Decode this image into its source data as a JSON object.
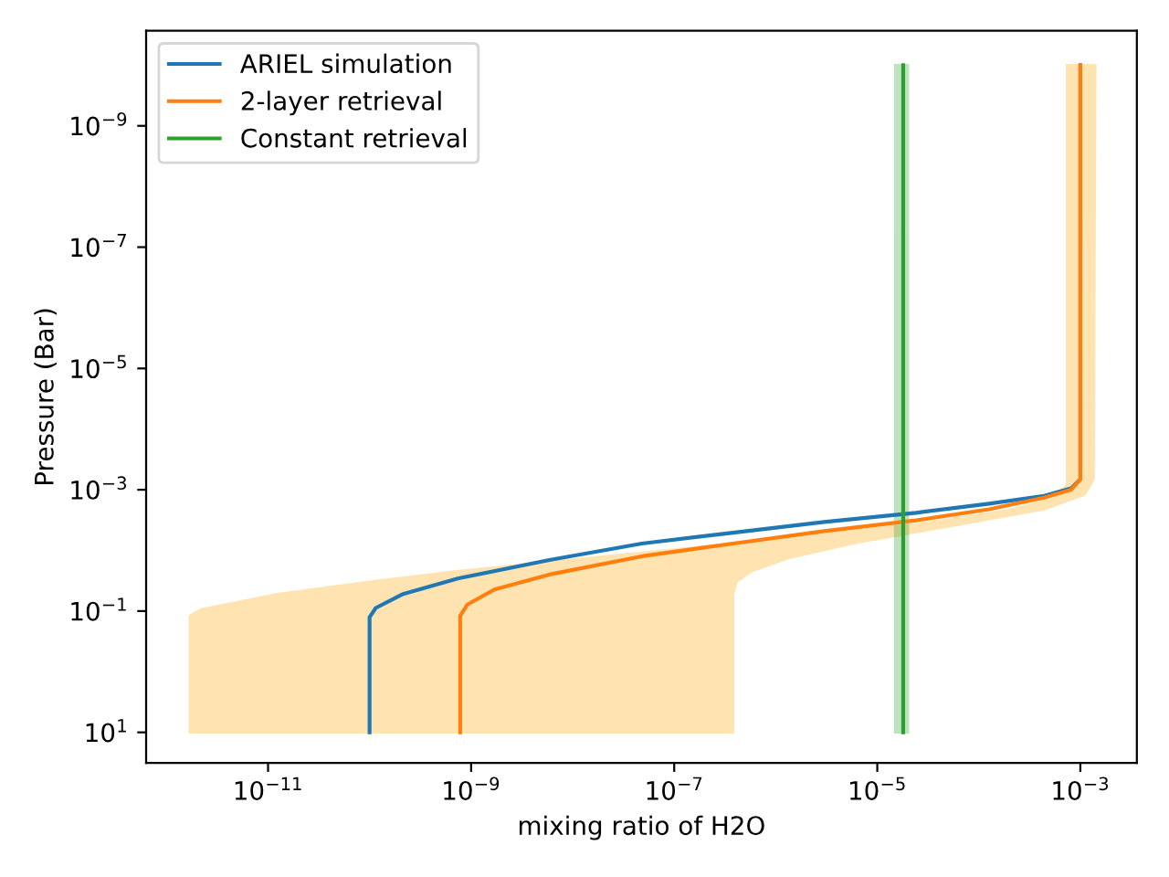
{
  "chart_data": {
    "type": "line",
    "xlabel": "mixing ratio of H2O",
    "ylabel": "Pressure (Bar)",
    "log": "xy",
    "xlim": [
      6.3e-13,
      0.0036
    ],
    "ylim": [
      32,
      2.7e-11
    ],
    "xticks": [
      {
        "value": 1e-11,
        "label": "10$^{−11}$"
      },
      {
        "value": 1e-09,
        "label": "10$^{−9}$"
      },
      {
        "value": 1e-07,
        "label": "10$^{−7}$"
      },
      {
        "value": 1e-05,
        "label": "10$^{−5}$"
      },
      {
        "value": 0.001,
        "label": "10$^{−3}$"
      }
    ],
    "yticks": [
      {
        "value": 1e-09,
        "label": "10$^{−9}$"
      },
      {
        "value": 1e-07,
        "label": "10$^{−7}$"
      },
      {
        "value": 1e-05,
        "label": "10$^{−5}$"
      },
      {
        "value": 0.001,
        "label": "10$^{−3}$"
      },
      {
        "value": 0.1,
        "label": "10$^{−1}$"
      },
      {
        "value": 10,
        "label": "10$^{1}$"
      }
    ],
    "legend": "top left",
    "grid": false,
    "series": [
      {
        "type": "area",
        "color": "#ffa500",
        "x": [
          1.7e-12,
          1.7e-12,
          2.2e-12,
          1.2e-11,
          1e-10,
          7.4e-10,
          5.9e-09,
          4.8e-08,
          3.8e-07,
          3e-06,
          2.4e-05,
          0.00019,
          0.00054,
          0.00074,
          0.00074,
          0.0014,
          0.00135,
          0.0011,
          0.00044,
          5.5e-05,
          6.9e-06,
          1.3e-06,
          5.8e-07,
          4.1e-07,
          3.8e-07,
          3.8e-07
        ],
        "values": [
          10,
          0.12,
          0.094,
          0.053,
          0.033,
          0.022,
          0.0155,
          0.011,
          0.0077,
          0.0054,
          0.0037,
          0.0022,
          0.0014,
          0.00083,
          1e-10,
          1e-10,
          0.00067,
          0.0012,
          0.0021,
          0.0039,
          0.0072,
          0.0135,
          0.022,
          0.033,
          0.053,
          10
        ]
      },
      {
        "type": "area",
        "color": "#2ca02c",
        "x": [
          1.5e-05,
          1.5e-05,
          2e-05,
          2e-05
        ],
        "values": [
          10,
          1e-10,
          1e-10,
          10
        ]
      },
      {
        "name": "ARIEL simulation",
        "color": "#1f77b4",
        "x": [
          1e-10,
          1e-10,
          1.15e-10,
          2.1e-10,
          7.4e-10,
          5.9e-09,
          4.8e-08,
          3.8e-07,
          3e-06,
          2.4e-05,
          0.000126,
          0.00044,
          0.00081,
          0.001,
          0.001
        ],
        "values": [
          10,
          0.126,
          0.089,
          0.053,
          0.029,
          0.0144,
          0.0077,
          0.0051,
          0.0034,
          0.0024,
          0.0017,
          0.00126,
          0.00095,
          0.00067,
          1e-10
        ]
      },
      {
        "name": "2-layer retrieval",
        "color": "#ff7f0e",
        "x": [
          7.8e-10,
          7.8e-10,
          9.2e-10,
          1.7e-09,
          5.9e-09,
          4.8e-08,
          3.8e-07,
          3e-06,
          2.4e-05,
          0.000126,
          0.00044,
          0.00081,
          0.001,
          0.001
        ],
        "values": [
          10,
          0.12,
          0.078,
          0.044,
          0.025,
          0.0125,
          0.0077,
          0.0048,
          0.0032,
          0.0021,
          0.00135,
          0.001,
          0.00067,
          1e-10
        ]
      },
      {
        "name": "Constant retrieval",
        "color": "#2ca02c",
        "x": [
          1.8e-05,
          1.8e-05
        ],
        "values": [
          10,
          1e-10
        ]
      }
    ]
  }
}
